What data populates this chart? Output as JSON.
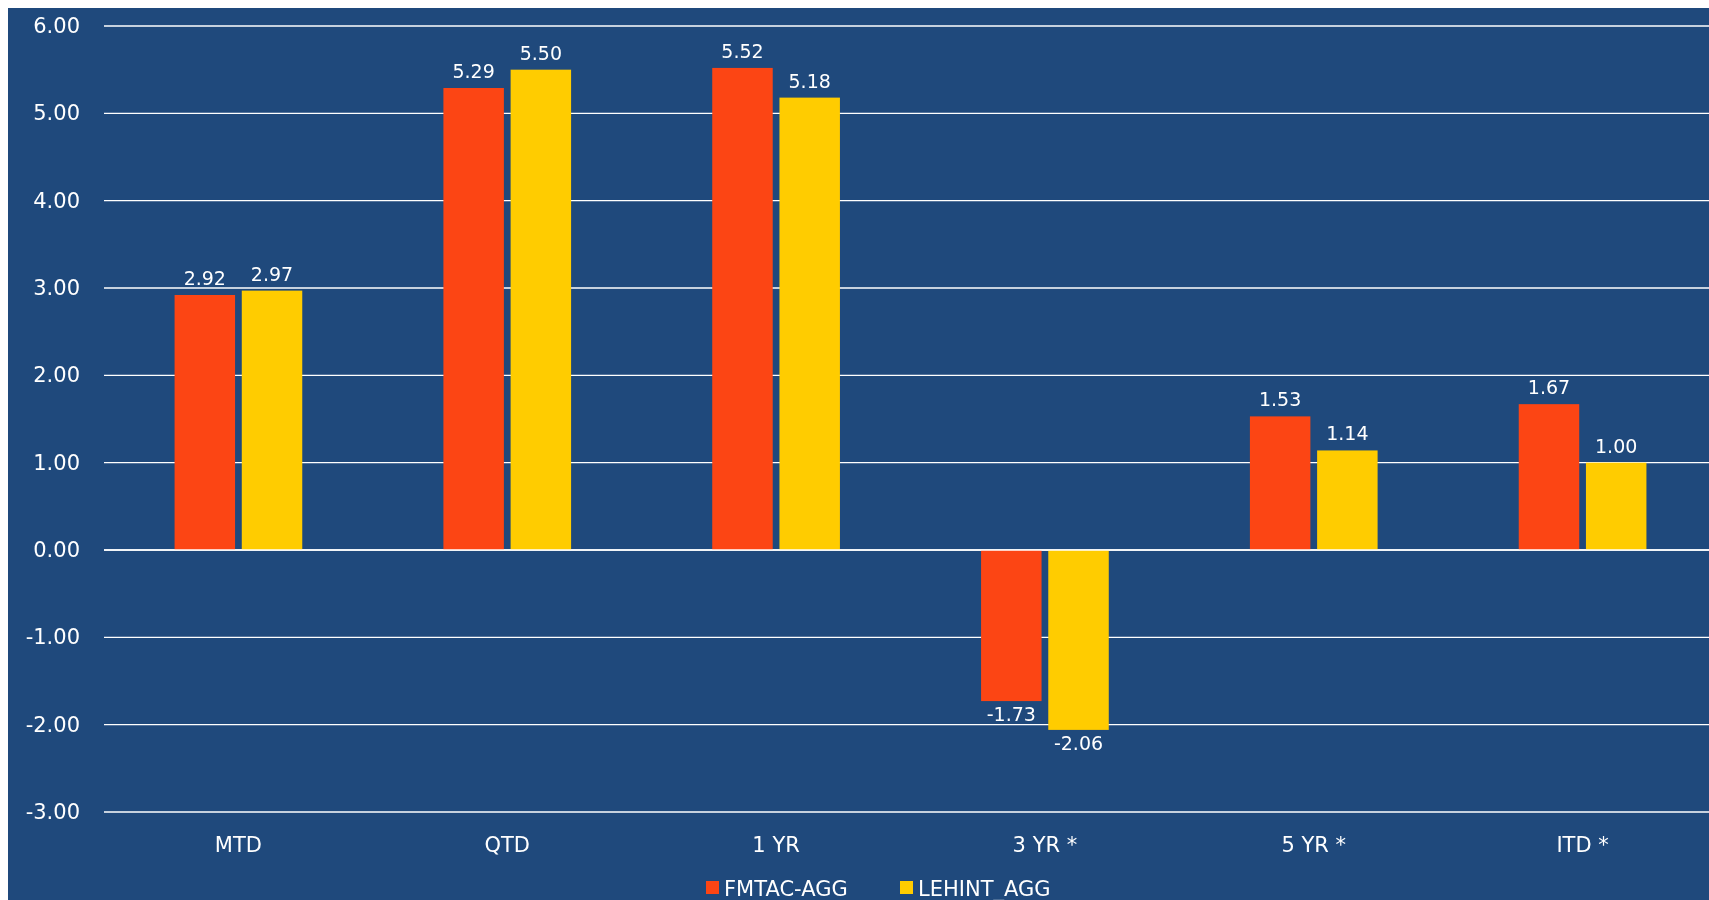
{
  "chart_data": {
    "type": "bar",
    "categories": [
      "MTD",
      "QTD",
      "1 YR",
      "3 YR *",
      "5 YR *",
      "ITD *"
    ],
    "series": [
      {
        "name": "FMTAC-AGG",
        "color": "#fc4514",
        "values": [
          2.92,
          5.29,
          5.52,
          -1.73,
          1.53,
          1.67
        ],
        "value_labels": [
          "2.92",
          "5.29",
          "5.52",
          "-1.73",
          "1.53",
          "1.67"
        ]
      },
      {
        "name": "LEHINT_AGG",
        "color": "#ffcc00",
        "values": [
          2.97,
          5.5,
          5.18,
          -2.06,
          1.14,
          1.0
        ],
        "value_labels": [
          "2.97",
          "5.50",
          "5.18",
          "-2.06",
          "1.14",
          "1.00"
        ]
      }
    ],
    "ylim": [
      -3,
      6
    ],
    "yticks": [
      {
        "value": -3,
        "label": "-3.00"
      },
      {
        "value": -2,
        "label": "-2.00"
      },
      {
        "value": -1,
        "label": "-1.00"
      },
      {
        "value": 0,
        "label": "0.00"
      },
      {
        "value": 1,
        "label": "1.00"
      },
      {
        "value": 2,
        "label": "2.00"
      },
      {
        "value": 3,
        "label": "3.00"
      },
      {
        "value": 4,
        "label": "4.00"
      },
      {
        "value": 5,
        "label": "5.00"
      },
      {
        "value": 6,
        "label": "6.00"
      }
    ],
    "grid": "y",
    "legend": "bottom"
  }
}
